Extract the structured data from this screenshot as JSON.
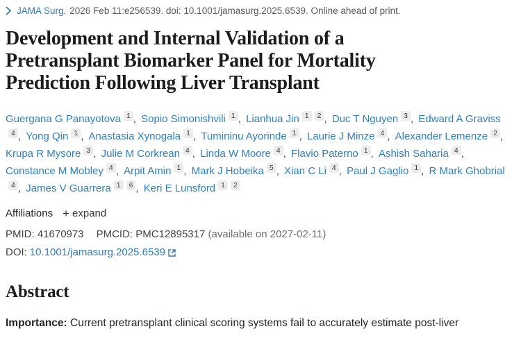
{
  "citation": {
    "journal": "JAMA Surg.",
    "details": "2026 Feb 11:e256539. doi: 10.1001/jamasurg.2025.6539. Online ahead of print."
  },
  "title": "Development and Internal Validation of a Pretransplant Biomarker Panel for Mortality Prediction Following Liver Transplant",
  "authors": [
    {
      "name": "Guergana G Panayotova",
      "sups": [
        "1"
      ]
    },
    {
      "name": "Sopio Simonishvili",
      "sups": [
        "1"
      ]
    },
    {
      "name": "Lianhua Jin",
      "sups": [
        "1",
        "2"
      ]
    },
    {
      "name": "Duc T Nguyen",
      "sups": [
        "3"
      ]
    },
    {
      "name": "Edward A Graviss",
      "sups": [
        "4"
      ]
    },
    {
      "name": "Yong Qin",
      "sups": [
        "1"
      ]
    },
    {
      "name": "Anastasia Xynogala",
      "sups": [
        "1"
      ]
    },
    {
      "name": "Tumininu Ayorinde",
      "sups": [
        "1"
      ]
    },
    {
      "name": "Laurie J Minze",
      "sups": [
        "4"
      ]
    },
    {
      "name": "Alexander Lemenze",
      "sups": [
        "2"
      ]
    },
    {
      "name": "Krupa R Mysore",
      "sups": [
        "3"
      ]
    },
    {
      "name": "Julie M Corkrean",
      "sups": [
        "4"
      ]
    },
    {
      "name": "Linda W Moore",
      "sups": [
        "4"
      ]
    },
    {
      "name": "Flavio Paterno",
      "sups": [
        "1"
      ]
    },
    {
      "name": "Ashish Saharia",
      "sups": [
        "4"
      ]
    },
    {
      "name": "Constance M Mobley",
      "sups": [
        "4"
      ]
    },
    {
      "name": "Arpit Amin",
      "sups": [
        "1"
      ]
    },
    {
      "name": "Mark J Hobeika",
      "sups": [
        "5"
      ]
    },
    {
      "name": "Xian C Li",
      "sups": [
        "4"
      ]
    },
    {
      "name": "Paul J Gaglio",
      "sups": [
        "1"
      ]
    },
    {
      "name": "R Mark Ghobrial",
      "sups": [
        "4"
      ]
    },
    {
      "name": "James V Guarrera",
      "sups": [
        "1",
        "6"
      ]
    },
    {
      "name": "Keri E Lunsford",
      "sups": [
        "1",
        "2"
      ]
    }
  ],
  "affiliations": {
    "label": "Affiliations",
    "expand_symbol": "+",
    "expand_label": "expand"
  },
  "identifiers": {
    "pmid_label": "PMID:",
    "pmid": "41670973",
    "pmcid_label": "PMCID:",
    "pmcid": "PMC12895317",
    "pmcid_note": "(available on 2027-02-11)",
    "doi_label": "DOI:",
    "doi": "10.1001/jamasurg.2025.6539"
  },
  "abstract": {
    "heading": "Abstract",
    "importance_label": "Importance:",
    "importance_text": "Current pretransplant clinical scoring systems fail to accurately estimate post-liver"
  },
  "colors": {
    "link_blue": "#2b7bbb",
    "author_blue": "#2e7fc1",
    "badge_bg": "#ececec",
    "text_dark": "#212529",
    "text_muted": "#6a6f75"
  }
}
